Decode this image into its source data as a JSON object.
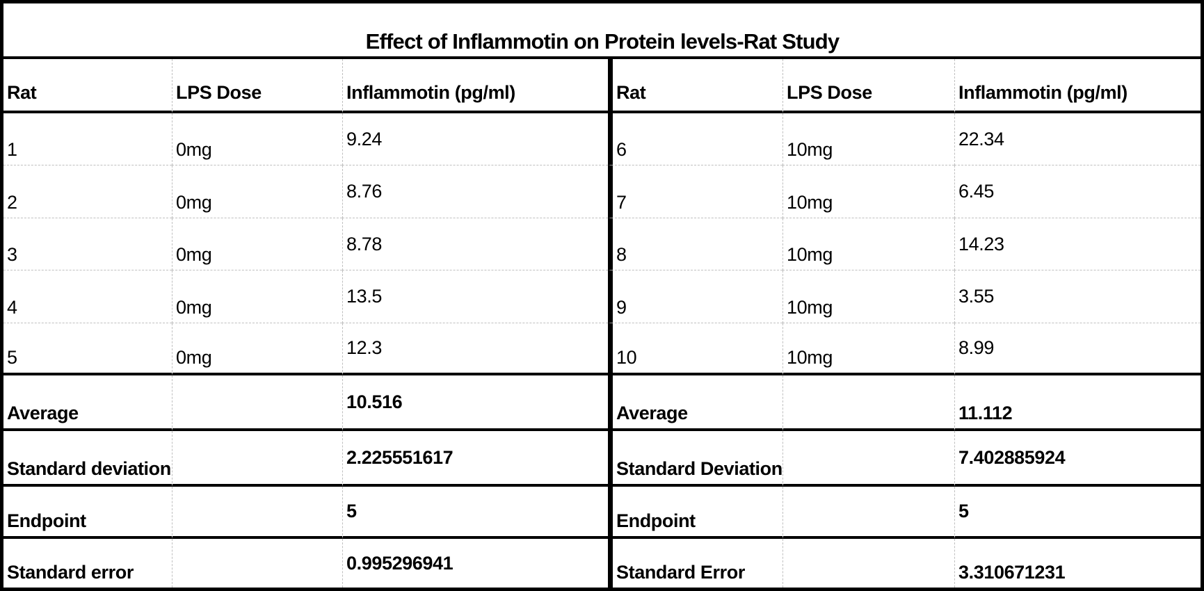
{
  "title": "Effect of Inflammotin on Protein levels-Rat Study",
  "left_table": {
    "headers": {
      "rat": "Rat",
      "dose": "LPS Dose",
      "value": "Inflammotin (pg/ml)"
    },
    "rows": [
      {
        "rat": "1",
        "dose": "0mg",
        "value": "9.24"
      },
      {
        "rat": "2",
        "dose": "0mg",
        "value": "8.76"
      },
      {
        "rat": "3",
        "dose": "0mg",
        "value": "8.78"
      },
      {
        "rat": "4",
        "dose": "0mg",
        "value": "13.5"
      },
      {
        "rat": "5",
        "dose": "0mg",
        "value": "12.3"
      }
    ],
    "summary": [
      {
        "label": "Average",
        "value": "10.516"
      },
      {
        "label": "Standard deviation",
        "value": "2.225551617"
      },
      {
        "label": "Endpoint",
        "value": "5"
      },
      {
        "label": "Standard error",
        "value": "0.995296941"
      }
    ]
  },
  "right_table": {
    "headers": {
      "rat": "Rat",
      "dose": "LPS Dose",
      "value": "Inflammotin (pg/ml)"
    },
    "rows": [
      {
        "rat": "6",
        "dose": "10mg",
        "value": "22.34"
      },
      {
        "rat": "7",
        "dose": "10mg",
        "value": "6.45"
      },
      {
        "rat": "8",
        "dose": "10mg",
        "value": "14.23"
      },
      {
        "rat": "9",
        "dose": "10mg",
        "value": "3.55"
      },
      {
        "rat": "10",
        "dose": "10mg",
        "value": "8.99"
      }
    ],
    "summary": [
      {
        "label": "Average",
        "value": "11.112"
      },
      {
        "label": "Standard Deviation",
        "value": "7.402885924"
      },
      {
        "label": "Endpoint",
        "value": "5"
      },
      {
        "label": "Standard Error",
        "value": "3.310671231"
      }
    ]
  },
  "chart_data": {
    "type": "table",
    "title": "Effect of Inflammotin on Protein levels-Rat Study",
    "tables": [
      {
        "columns": [
          "Rat",
          "LPS Dose",
          "Inflammotin (pg/ml)"
        ],
        "rows": [
          [
            "1",
            "0mg",
            9.24
          ],
          [
            "2",
            "0mg",
            8.76
          ],
          [
            "3",
            "0mg",
            8.78
          ],
          [
            "4",
            "0mg",
            13.5
          ],
          [
            "5",
            "0mg",
            12.3
          ]
        ],
        "summary": {
          "Average": 10.516,
          "Standard deviation": 2.225551617,
          "Endpoint": 5,
          "Standard error": 0.995296941
        }
      },
      {
        "columns": [
          "Rat",
          "LPS Dose",
          "Inflammotin (pg/ml)"
        ],
        "rows": [
          [
            "6",
            "10mg",
            22.34
          ],
          [
            "7",
            "10mg",
            6.45
          ],
          [
            "8",
            "10mg",
            14.23
          ],
          [
            "9",
            "10mg",
            3.55
          ],
          [
            "10",
            "10mg",
            8.99
          ]
        ],
        "summary": {
          "Average": 11.112,
          "Standard Deviation": 7.402885924,
          "Endpoint": 5,
          "Standard Error": 3.310671231
        }
      }
    ]
  }
}
